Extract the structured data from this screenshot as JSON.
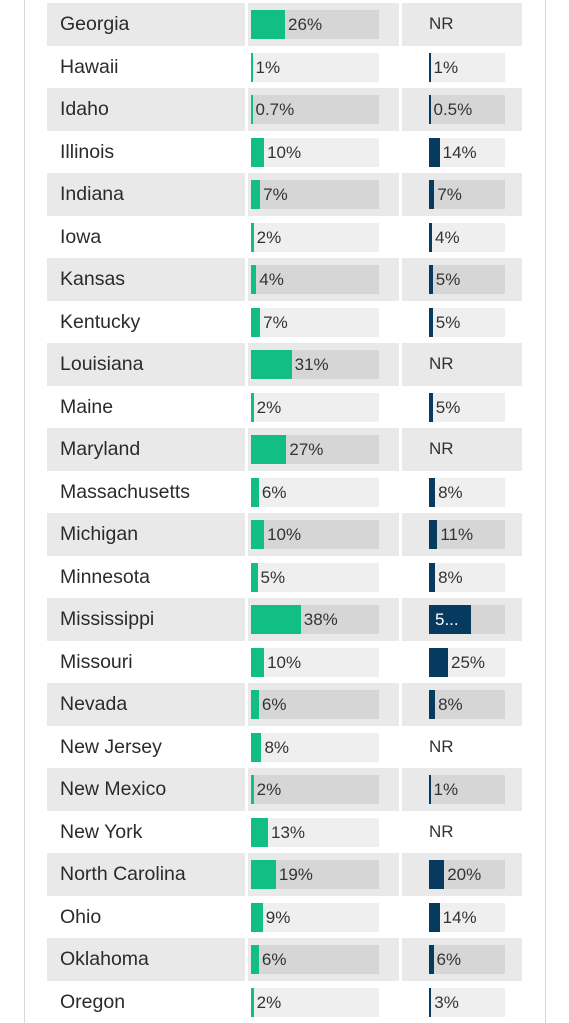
{
  "chart_data": {
    "type": "table",
    "colors": {
      "series_1": "#11bf84",
      "series_2": "#063a5e"
    },
    "rows": [
      {
        "state": "Georgia",
        "v1": 26,
        "l1": "26%",
        "v2": null,
        "l2": "NR"
      },
      {
        "state": "Hawaii",
        "v1": 1,
        "l1": "1%",
        "v2": 1,
        "l2": "1%"
      },
      {
        "state": "Idaho",
        "v1": 0.7,
        "l1": "0.7%",
        "v2": 0.5,
        "l2": "0.5%"
      },
      {
        "state": "Illinois",
        "v1": 10,
        "l1": "10%",
        "v2": 14,
        "l2": "14%"
      },
      {
        "state": "Indiana",
        "v1": 7,
        "l1": "7%",
        "v2": 7,
        "l2": "7%"
      },
      {
        "state": "Iowa",
        "v1": 2,
        "l1": "2%",
        "v2": 4,
        "l2": "4%"
      },
      {
        "state": "Kansas",
        "v1": 4,
        "l1": "4%",
        "v2": 5,
        "l2": "5%"
      },
      {
        "state": "Kentucky",
        "v1": 7,
        "l1": "7%",
        "v2": 5,
        "l2": "5%"
      },
      {
        "state": "Louisiana",
        "v1": 31,
        "l1": "31%",
        "v2": null,
        "l2": "NR"
      },
      {
        "state": "Maine",
        "v1": 2,
        "l1": "2%",
        "v2": 5,
        "l2": "5%"
      },
      {
        "state": "Maryland",
        "v1": 27,
        "l1": "27%",
        "v2": null,
        "l2": "NR"
      },
      {
        "state": "Massachusetts",
        "v1": 6,
        "l1": "6%",
        "v2": 8,
        "l2": "8%"
      },
      {
        "state": "Michigan",
        "v1": 10,
        "l1": "10%",
        "v2": 11,
        "l2": "11%"
      },
      {
        "state": "Minnesota",
        "v1": 5,
        "l1": "5%",
        "v2": 8,
        "l2": "8%"
      },
      {
        "state": "Mississippi",
        "v1": 38,
        "l1": "38%",
        "v2": 55,
        "l2": "5..."
      },
      {
        "state": "Missouri",
        "v1": 10,
        "l1": "10%",
        "v2": 25,
        "l2": "25%"
      },
      {
        "state": "Nevada",
        "v1": 6,
        "l1": "6%",
        "v2": 8,
        "l2": "8%"
      },
      {
        "state": "New Jersey",
        "v1": 8,
        "l1": "8%",
        "v2": null,
        "l2": "NR"
      },
      {
        "state": "New Mexico",
        "v1": 2,
        "l1": "2%",
        "v2": 1,
        "l2": "1%"
      },
      {
        "state": "New York",
        "v1": 13,
        "l1": "13%",
        "v2": null,
        "l2": "NR"
      },
      {
        "state": "North Carolina",
        "v1": 19,
        "l1": "19%",
        "v2": 20,
        "l2": "20%"
      },
      {
        "state": "Ohio",
        "v1": 9,
        "l1": "9%",
        "v2": 14,
        "l2": "14%"
      },
      {
        "state": "Oklahoma",
        "v1": 6,
        "l1": "6%",
        "v2": 6,
        "l2": "6%"
      },
      {
        "state": "Oregon",
        "v1": 2,
        "l1": "2%",
        "v2": 3,
        "l2": "3%"
      }
    ]
  }
}
